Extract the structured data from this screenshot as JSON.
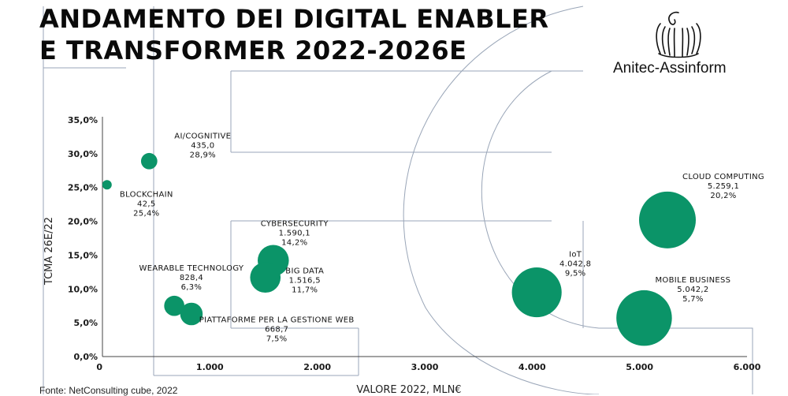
{
  "header": {
    "title_line1": "ANDAMENTO DEI DIGITAL ENABLER",
    "title_line2": "E TRANSFORMER 2022-2026E",
    "logo_text": "Anitec-Assinform"
  },
  "source": "Fonte: NetConsulting cube, 2022",
  "colors": {
    "bubble": "#0b9468",
    "decor": "#9aa6b8"
  },
  "chart_data": {
    "type": "scatter",
    "xlabel": "VALORE 2022, MLN€",
    "ylabel": "TCMA 26E/22",
    "xlim": [
      0,
      6000
    ],
    "ylim": [
      0,
      35
    ],
    "x_ticks": [
      "0",
      "1.000",
      "2.000",
      "3.000",
      "4.000",
      "5.000",
      "6.000"
    ],
    "y_ticks": [
      "0,0%",
      "5,0%",
      "10,0%",
      "15,0%",
      "20,0%",
      "25,0%",
      "30,0%",
      "35,0%"
    ],
    "points": [
      {
        "name": "AI/COGNITIVE",
        "x": 435.0,
        "y": 28.9,
        "value_label": "435,0",
        "pct_label": "28,9%"
      },
      {
        "name": "BLOCKCHAIN",
        "x": 42.5,
        "y": 25.4,
        "value_label": "42,5",
        "pct_label": "25,4%"
      },
      {
        "name": "WEARABLE TECHNOLOGY",
        "x": 828.4,
        "y": 6.3,
        "value_label": "828,4",
        "pct_label": "6,3%"
      },
      {
        "name": "PIATTAFORME PER LA GESTIONE WEB",
        "x": 668.7,
        "y": 7.5,
        "value_label": "668,7",
        "pct_label": "7,5%"
      },
      {
        "name": "CYBERSECURITY",
        "x": 1590.1,
        "y": 14.2,
        "value_label": "1.590,1",
        "pct_label": "14,2%"
      },
      {
        "name": "BIG DATA",
        "x": 1516.5,
        "y": 11.7,
        "value_label": "1.516,5",
        "pct_label": "11,7%"
      },
      {
        "name": "IoT",
        "x": 4042.8,
        "y": 9.5,
        "value_label": "4.042,8",
        "pct_label": "9,5%"
      },
      {
        "name": "MOBILE BUSINESS",
        "x": 5042.2,
        "y": 5.7,
        "value_label": "5.042,2",
        "pct_label": "5,7%"
      },
      {
        "name": "CLOUD COMPUTING",
        "x": 5259.1,
        "y": 20.2,
        "value_label": "5.259,1",
        "pct_label": "20,2%"
      }
    ],
    "grid": false,
    "legend": "none"
  }
}
